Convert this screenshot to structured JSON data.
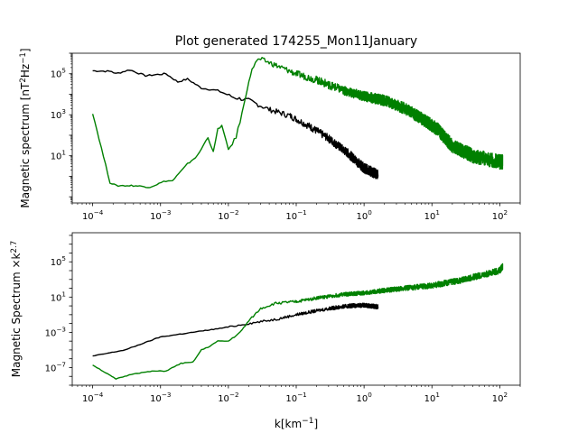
{
  "figure": {
    "title": "Plot generated 174255_Mon11January",
    "xlabel": "k[km$^{-1}$]"
  },
  "colors": {
    "black": "#000000",
    "green": "#008000"
  },
  "chart_data": [
    {
      "type": "line",
      "title": "Plot generated 174255_Mon11January",
      "ylabel": "Magnetic spectrum [nT^2Hz^{-1}]",
      "xlabel": "",
      "xscale": "log",
      "yscale": "log",
      "xlim": [
        5e-05,
        200
      ],
      "ylim": [
        0.05,
        1000000
      ],
      "xticks": [
        {
          "value": 0.0001,
          "label": "10^-4"
        },
        {
          "value": 0.001,
          "label": "10^-3"
        },
        {
          "value": 0.01,
          "label": "10^-2"
        },
        {
          "value": 0.1,
          "label": "10^-1"
        },
        {
          "value": 1,
          "label": "10^0"
        },
        {
          "value": 10,
          "label": "10^1"
        },
        {
          "value": 100,
          "label": "10^2"
        }
      ],
      "yticks": [
        {
          "value": 10,
          "label": "10^1"
        },
        {
          "value": 1000,
          "label": "10^3"
        },
        {
          "value": 100000,
          "label": "10^5"
        }
      ],
      "series": [
        {
          "color": "#000000",
          "x": [
            0.0001,
            0.00019,
            0.00022,
            0.00035,
            0.0006,
            0.0012,
            0.0018,
            0.0025,
            0.004,
            0.007,
            0.012,
            0.02,
            0.04,
            0.08,
            0.15,
            0.3,
            0.6,
            1.0,
            1.6
          ],
          "y": [
            140000,
            130000,
            100000,
            155000,
            80000,
            100000,
            40000,
            55000,
            20000,
            15000,
            7000,
            5000,
            1800,
            900,
            300,
            70,
            12,
            2.5,
            1.2
          ]
        },
        {
          "color": "#008000",
          "x": [
            0.0001,
            0.00018,
            0.00022,
            0.0003,
            0.0004,
            0.0007,
            0.0012,
            0.0015,
            0.0025,
            0.0035,
            0.005,
            0.006,
            0.007,
            0.008,
            0.01,
            0.013,
            0.017,
            0.02,
            0.025,
            0.03,
            0.04,
            0.06,
            0.1,
            0.2,
            0.5,
            1,
            2,
            4,
            8,
            12,
            20,
            40,
            100,
            110
          ],
          "y": [
            1200,
            0.5,
            0.35,
            0.35,
            0.35,
            0.3,
            0.6,
            0.6,
            4,
            10,
            80,
            15,
            200,
            300,
            20,
            80,
            3000,
            50000,
            400000,
            500000,
            350000,
            200000,
            100000,
            50000,
            15000,
            8000,
            5000,
            2000,
            500,
            200,
            30,
            10,
            5,
            5
          ]
        }
      ]
    },
    {
      "type": "line",
      "title": "",
      "ylabel": "Magnetic Spectrum ×k^{2.7}",
      "xlabel": "k[km$^{-1}$]",
      "xscale": "log",
      "yscale": "log",
      "xlim": [
        5e-05,
        200
      ],
      "ylim": [
        1e-09,
        200000000
      ],
      "xticks": [
        {
          "value": 0.0001,
          "label": "10^-4"
        },
        {
          "value": 0.001,
          "label": "10^-3"
        },
        {
          "value": 0.01,
          "label": "10^-2"
        },
        {
          "value": 0.1,
          "label": "10^-1"
        },
        {
          "value": 1,
          "label": "10^0"
        },
        {
          "value": 10,
          "label": "10^1"
        },
        {
          "value": 100,
          "label": "10^2"
        }
      ],
      "yticks": [
        {
          "value": 1e-07,
          "label": "10^-7"
        },
        {
          "value": 0.001,
          "label": "10^-3"
        },
        {
          "value": 10,
          "label": "10^1"
        },
        {
          "value": 100000,
          "label": "10^5"
        }
      ],
      "series": [
        {
          "color": "#000000",
          "x": [
            0.0001,
            0.0003,
            0.001,
            0.003,
            0.008,
            0.02,
            0.05,
            0.1,
            0.3,
            0.6,
            1.0,
            1.6
          ],
          "y": [
            2e-06,
            1e-05,
            0.0003,
            0.001,
            0.003,
            0.01,
            0.03,
            0.1,
            0.5,
            1.0,
            1.2,
            0.8
          ]
        },
        {
          "color": "#008000",
          "x": [
            0.0001,
            0.00022,
            0.0004,
            0.0008,
            0.0012,
            0.002,
            0.003,
            0.004,
            0.005,
            0.007,
            0.01,
            0.015,
            0.02,
            0.03,
            0.05,
            0.1,
            0.2,
            0.5,
            1,
            3,
            10,
            30,
            100,
            110
          ],
          "y": [
            2e-07,
            5e-09,
            2e-08,
            4e-08,
            4e-08,
            3e-07,
            4e-07,
            1e-05,
            2e-05,
            0.0001,
            0.0001,
            0.001,
            0.02,
            0.5,
            2,
            3,
            8,
            20,
            30,
            80,
            200,
            1000,
            10000,
            30000
          ]
        }
      ]
    }
  ]
}
